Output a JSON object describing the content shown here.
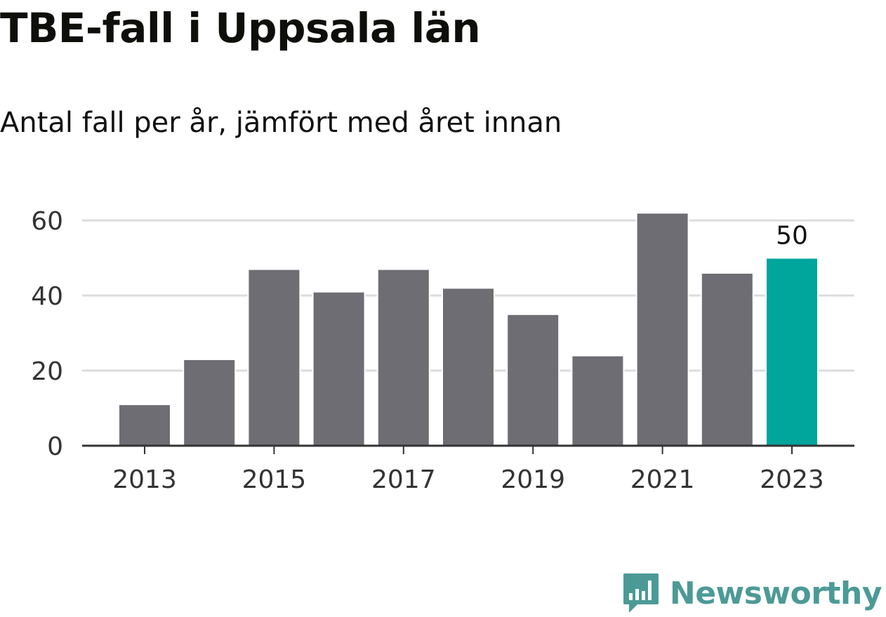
{
  "chart_data": {
    "type": "bar",
    "title": "TBE-fall i Uppsala län",
    "subtitle": "Antal fall per år, jämfört med året innan",
    "categories": [
      "2013",
      "2014",
      "2015",
      "2016",
      "2017",
      "2018",
      "2019",
      "2020",
      "2021",
      "2022",
      "2023"
    ],
    "values": [
      11,
      23,
      47,
      41,
      47,
      42,
      35,
      24,
      62,
      46,
      50
    ],
    "x_tick_labels": [
      "2013",
      "2015",
      "2017",
      "2019",
      "2021",
      "2023"
    ],
    "y_ticks": [
      0,
      20,
      40,
      60
    ],
    "ylim": [
      0,
      65
    ],
    "xlabel": "",
    "ylabel": "",
    "grid": true,
    "highlight_index": 10,
    "data_labels": [
      {
        "index": 10,
        "text": "50"
      }
    ],
    "colors": {
      "bar": "#6e6d73",
      "highlight": "#00a59b",
      "grid": "#dcdcdc",
      "axis": "#333333",
      "tick_text": "#333333"
    }
  },
  "brand": {
    "name": "Newsworthy",
    "logo_icon": "newsworthy-logo-icon",
    "color": "#4c9a97"
  }
}
